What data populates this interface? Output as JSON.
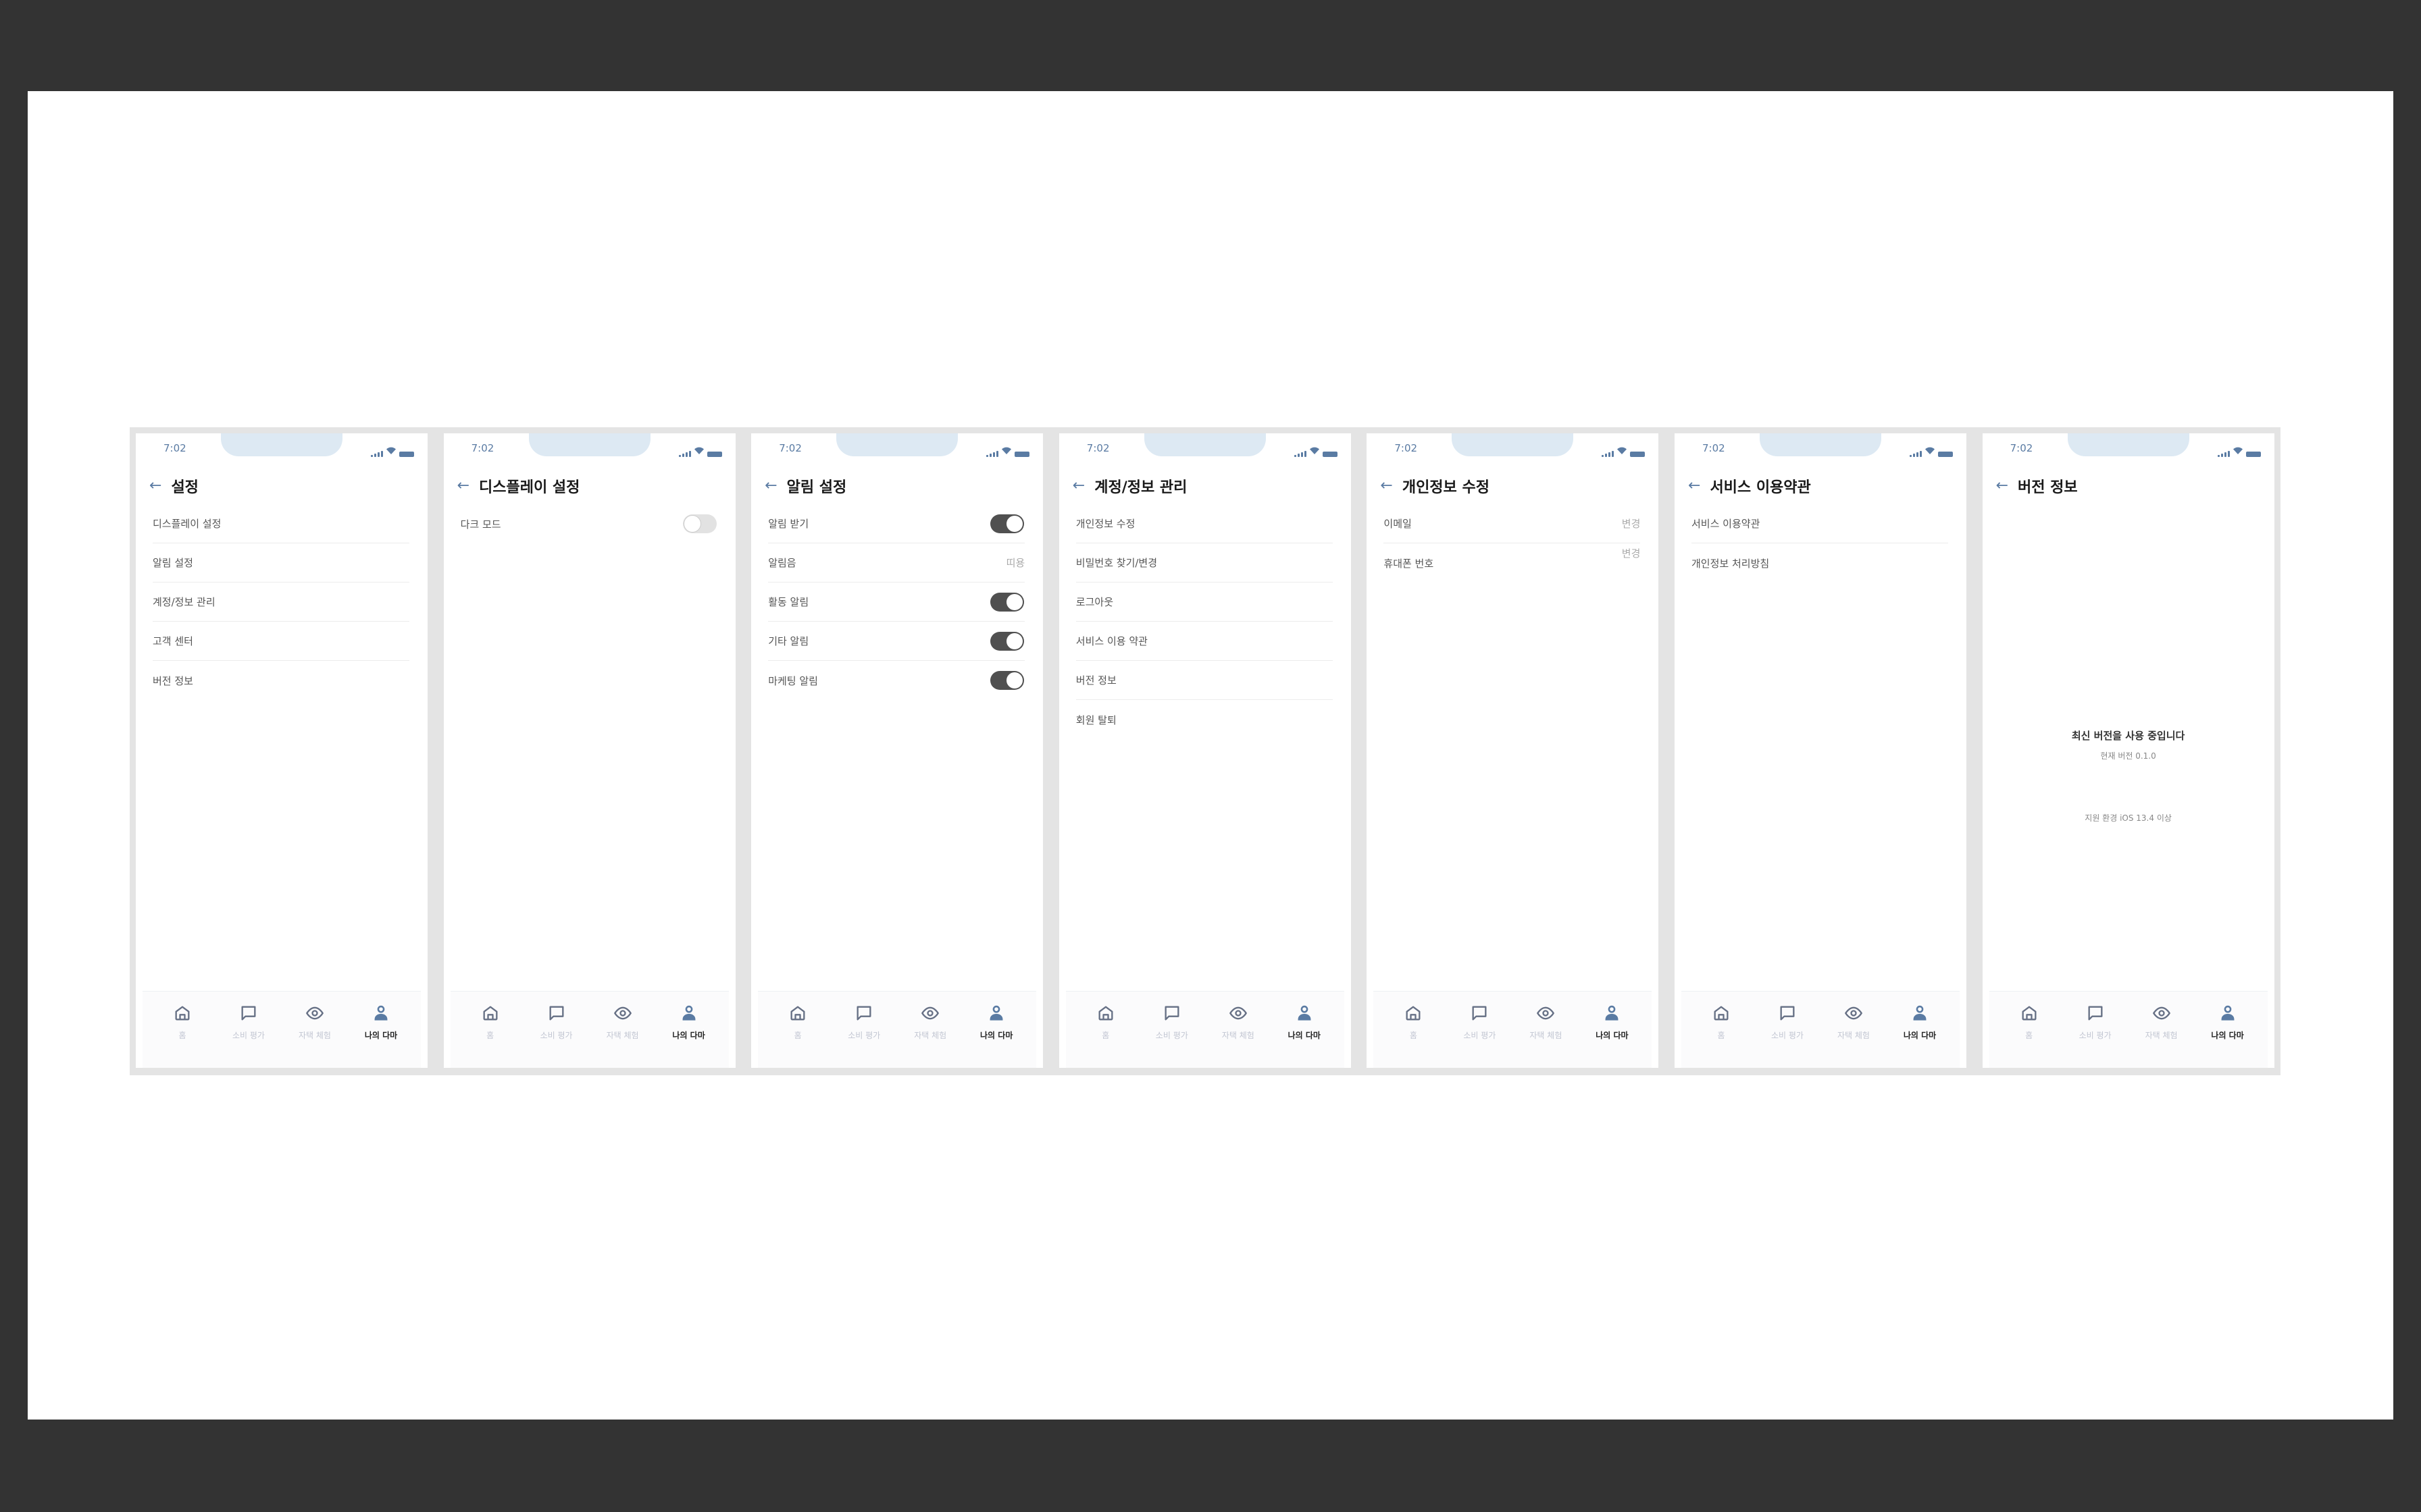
{
  "status_time": "7:02",
  "colors": {
    "accent": "#5a7ba3",
    "notch": "#dde9f3",
    "toggle_on": "#505050",
    "toggle_off": "#e2e2e2"
  },
  "nav": [
    {
      "label": "홈",
      "icon": "home-icon"
    },
    {
      "label": "소비 평가",
      "icon": "chat-bubble-icon"
    },
    {
      "label": "자택 체험",
      "icon": "eye-icon"
    },
    {
      "label": "나의 다마",
      "icon": "user-icon",
      "active": true
    }
  ],
  "screens": [
    {
      "title": "설정",
      "rows": [
        {
          "label": "디스플레이 설정"
        },
        {
          "label": "알림 설정"
        },
        {
          "label": "계정/정보 관리"
        },
        {
          "label": "고객 센터"
        },
        {
          "label": "버전 정보"
        }
      ]
    },
    {
      "title": "디스플레이 설정",
      "rows": [
        {
          "label": "다크 모드",
          "toggle": false
        }
      ]
    },
    {
      "title": "알림 설정",
      "rows": [
        {
          "label": "알림 받기",
          "toggle": true
        },
        {
          "label": "알림음",
          "value": "띠용"
        },
        {
          "label": "활동 알림",
          "toggle": true
        },
        {
          "label": "기타 알림",
          "toggle": true
        },
        {
          "label": "마케팅 알림",
          "toggle": true
        }
      ]
    },
    {
      "title": "계정/정보 관리",
      "rows": [
        {
          "label": "개인정보 수정"
        },
        {
          "label": "비밀번호 찾기/변경"
        },
        {
          "label": "로그아웃"
        },
        {
          "label": "서비스 이용 약관"
        },
        {
          "label": "버전 정보"
        },
        {
          "label": "회원 탈퇴"
        }
      ]
    },
    {
      "title": "개인정보 수정",
      "rows": [
        {
          "label": "이메일",
          "value": "변경"
        },
        {
          "label": "휴대폰 번호",
          "value": "변경",
          "value_raised": true
        }
      ]
    },
    {
      "title": "서비스 이용약관",
      "rows": [
        {
          "label": "서비스 이용약관"
        },
        {
          "label": "개인정보 처리방침"
        }
      ]
    },
    {
      "title": "버전 정보",
      "rows": [],
      "version": {
        "headline": "최신 버전을 사용 중입니다",
        "current": "현재 버전 0.1.0",
        "support": "지원 환경 iOS 13.4 이상"
      }
    }
  ]
}
